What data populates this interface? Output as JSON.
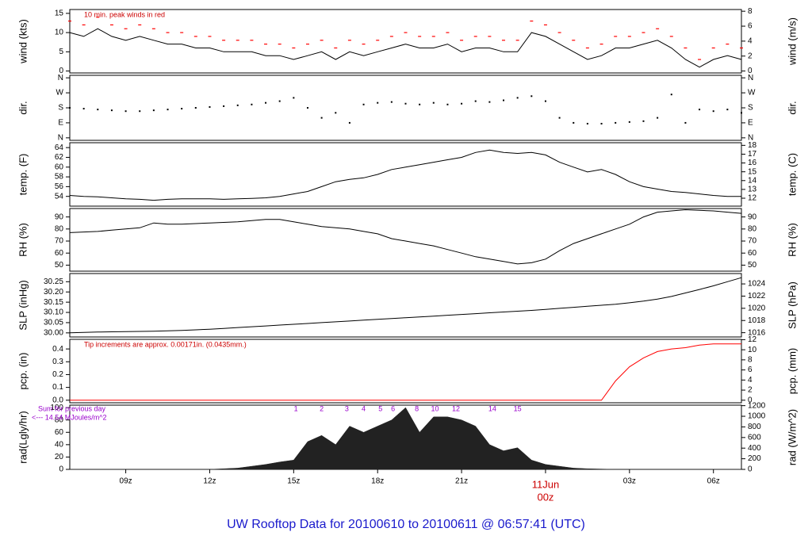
{
  "title": "UW Rooftop Data for 20100610  to  20100611 @ 06:57:41  (UTC)",
  "title_color": "#1a1acc",
  "chart_data": [
    {
      "type": "line",
      "ylabel": "wind (kts)",
      "y2label": "wind (m/s)",
      "note": "10 min. peak winds in red",
      "note_color": "#cc0000",
      "x": [
        7,
        7.5,
        8,
        8.5,
        9,
        9.5,
        10,
        10.5,
        11,
        11.5,
        12,
        12.5,
        13,
        13.5,
        14,
        14.5,
        15,
        15.5,
        16,
        16.5,
        17,
        17.5,
        18,
        18.5,
        19,
        19.5,
        20,
        20.5,
        21,
        21.5,
        22,
        22.5,
        23,
        23.5,
        24,
        24.5,
        25,
        25.5,
        26,
        26.5,
        27,
        27.5,
        28,
        28.5,
        29,
        29.5,
        30,
        30.5,
        31
      ],
      "series": [
        {
          "color": "#000000",
          "style": "line",
          "values": [
            10,
            9,
            11,
            9,
            8,
            9,
            8,
            7,
            7,
            6,
            6,
            5,
            5,
            5,
            4,
            4,
            3,
            4,
            5,
            3,
            5,
            4,
            5,
            6,
            7,
            6,
            6,
            7,
            5,
            6,
            6,
            5,
            5,
            10,
            9,
            7,
            5,
            3,
            4,
            6,
            6,
            7,
            8,
            6,
            3,
            1,
            3,
            4,
            3
          ]
        },
        {
          "color": "#ff0000",
          "style": "dash",
          "values": [
            13,
            12,
            14,
            12,
            11,
            12,
            11,
            10,
            10,
            9,
            9,
            8,
            8,
            8,
            7,
            7,
            6,
            7,
            8,
            6,
            8,
            7,
            8,
            9,
            10,
            9,
            9,
            10,
            8,
            9,
            9,
            8,
            8,
            13,
            12,
            10,
            8,
            6,
            7,
            9,
            9,
            10,
            11,
            9,
            6,
            3,
            6,
            7,
            6
          ]
        }
      ],
      "xlim": [
        7,
        31
      ],
      "ylim": [
        -0.5,
        16
      ],
      "yticks": [
        0,
        5,
        10,
        15
      ],
      "y2lim": [
        -0.257,
        8.23
      ],
      "y2ticks": [
        0,
        2,
        4,
        6,
        8
      ]
    },
    {
      "type": "scatter",
      "ylabel": "dir.",
      "y2label": "dir.",
      "x": [
        7,
        7.5,
        8,
        8.5,
        9,
        9.5,
        10,
        10.5,
        11,
        11.5,
        12,
        12.5,
        13,
        13.5,
        14,
        14.5,
        15,
        15.5,
        16,
        16.5,
        17,
        17.5,
        18,
        18.5,
        19,
        19.5,
        20,
        20.5,
        21,
        21.5,
        22,
        22.5,
        23,
        23.5,
        24,
        24.5,
        25,
        25.5,
        26,
        26.5,
        27,
        27.5,
        28,
        28.5,
        29,
        29.5,
        30,
        30.5,
        31
      ],
      "series": [
        {
          "color": "#000000",
          "style": "dot",
          "values": [
            180,
            175,
            170,
            165,
            160,
            160,
            165,
            170,
            175,
            180,
            185,
            190,
            195,
            200,
            210,
            220,
            240,
            180,
            120,
            150,
            90,
            200,
            210,
            215,
            205,
            200,
            210,
            200,
            205,
            220,
            215,
            225,
            240,
            250,
            220,
            120,
            90,
            85,
            85,
            90,
            95,
            100,
            120,
            260,
            90,
            170,
            160,
            170,
            150
          ]
        }
      ],
      "xlim": [
        7,
        31
      ],
      "ylim": [
        -15,
        375
      ],
      "yticks": [
        {
          "value": 0,
          "label": "N"
        },
        {
          "value": 90,
          "label": "E"
        },
        {
          "value": 180,
          "label": "S"
        },
        {
          "value": 270,
          "label": "W"
        },
        {
          "value": 360,
          "label": "N"
        }
      ],
      "y2lim": [
        -15,
        375
      ],
      "y2ticks": [
        {
          "value": 0,
          "label": "N"
        },
        {
          "value": 90,
          "label": "E"
        },
        {
          "value": 180,
          "label": "S"
        },
        {
          "value": 270,
          "label": "W"
        },
        {
          "value": 360,
          "label": "N"
        }
      ]
    },
    {
      "type": "line",
      "ylabel": "temp. (F)",
      "y2label": "temp. (C)",
      "x": [
        7,
        7.5,
        8,
        8.5,
        9,
        9.5,
        10,
        10.5,
        11,
        11.5,
        12,
        12.5,
        13,
        13.5,
        14,
        14.5,
        15,
        15.5,
        16,
        16.5,
        17,
        17.5,
        18,
        18.5,
        19,
        19.5,
        20,
        20.5,
        21,
        21.5,
        22,
        22.5,
        23,
        23.5,
        24,
        24.5,
        25,
        25.5,
        26,
        26.5,
        27,
        27.5,
        28,
        28.5,
        29,
        29.5,
        30,
        30.5,
        31
      ],
      "series": [
        {
          "color": "#000000",
          "style": "line",
          "values": [
            54.2,
            54,
            53.9,
            53.7,
            53.5,
            53.4,
            53.2,
            53.4,
            53.5,
            53.5,
            53.5,
            53.4,
            53.5,
            53.6,
            53.7,
            54,
            54.5,
            55,
            56,
            57,
            57.5,
            57.8,
            58.5,
            59.5,
            60,
            60.5,
            61,
            61.5,
            62,
            63,
            63.5,
            63,
            62.8,
            63,
            62.5,
            61,
            60,
            59,
            59.5,
            58.5,
            57,
            56,
            55.5,
            55,
            54.8,
            54.5,
            54.2,
            54,
            54
          ]
        }
      ],
      "xlim": [
        7,
        31
      ],
      "ylim": [
        52,
        65
      ],
      "yticks": [
        54,
        56,
        58,
        60,
        62,
        64
      ],
      "y2lim": [
        11.1,
        18.3
      ],
      "y2ticks": [
        12,
        13,
        14,
        15,
        16,
        17,
        18
      ]
    },
    {
      "type": "line",
      "ylabel": "RH (%)",
      "y2label": "RH (%)",
      "x": [
        7,
        7.5,
        8,
        8.5,
        9,
        9.5,
        10,
        10.5,
        11,
        11.5,
        12,
        12.5,
        13,
        13.5,
        14,
        14.5,
        15,
        15.5,
        16,
        16.5,
        17,
        17.5,
        18,
        18.5,
        19,
        19.5,
        20,
        20.5,
        21,
        21.5,
        22,
        22.5,
        23,
        23.5,
        24,
        24.5,
        25,
        25.5,
        26,
        26.5,
        27,
        27.5,
        28,
        28.5,
        29,
        29.5,
        30,
        30.5,
        31
      ],
      "series": [
        {
          "color": "#000000",
          "style": "line",
          "values": [
            77,
            77.5,
            78,
            79,
            80,
            81,
            85,
            84,
            84,
            84.5,
            85,
            85.5,
            86,
            87,
            88,
            88,
            86,
            84,
            82,
            81,
            80,
            78,
            76,
            72,
            70,
            68,
            66,
            63,
            60,
            57,
            55,
            53,
            51,
            52,
            55,
            62,
            68,
            72,
            76,
            80,
            84,
            90,
            94,
            95,
            96,
            95.5,
            95,
            94,
            93
          ]
        }
      ],
      "xlim": [
        7,
        31
      ],
      "ylim": [
        45,
        97
      ],
      "yticks": [
        50,
        60,
        70,
        80,
        90
      ],
      "y2lim": [
        45,
        97
      ],
      "y2ticks": [
        50,
        60,
        70,
        80,
        90
      ]
    },
    {
      "type": "line",
      "ylabel": "SLP (inHg)",
      "y2label": "SLP (hPa)",
      "x": [
        7,
        7.5,
        8,
        8.5,
        9,
        9.5,
        10,
        10.5,
        11,
        11.5,
        12,
        12.5,
        13,
        13.5,
        14,
        14.5,
        15,
        15.5,
        16,
        16.5,
        17,
        17.5,
        18,
        18.5,
        19,
        19.5,
        20,
        20.5,
        21,
        21.5,
        22,
        22.5,
        23,
        23.5,
        24,
        24.5,
        25,
        25.5,
        26,
        26.5,
        27,
        27.5,
        28,
        28.5,
        29,
        29.5,
        30,
        30.5,
        31
      ],
      "series": [
        {
          "color": "#000000",
          "style": "line",
          "values": [
            30.0,
            30.002,
            30.004,
            30.005,
            30.006,
            30.007,
            30.008,
            30.01,
            30.012,
            30.015,
            30.018,
            30.022,
            30.026,
            30.03,
            30.034,
            30.038,
            30.042,
            30.046,
            30.05,
            30.054,
            30.058,
            30.062,
            30.066,
            30.07,
            30.074,
            30.078,
            30.082,
            30.086,
            30.09,
            30.094,
            30.098,
            30.102,
            30.106,
            30.11,
            30.115,
            30.12,
            30.125,
            30.13,
            30.135,
            30.14,
            30.147,
            30.155,
            30.165,
            30.178,
            30.195,
            30.212,
            30.23,
            30.25,
            30.27
          ]
        }
      ],
      "xlim": [
        7,
        31
      ],
      "ylim": [
        29.98,
        30.29
      ],
      "yticks": [
        {
          "value": 30.0,
          "label": "30.00"
        },
        30.05,
        {
          "value": 30.1,
          "label": "30.10"
        },
        30.15,
        {
          "value": 30.2,
          "label": "30.20"
        },
        30.25
      ],
      "y2lim": [
        1015.3,
        1025.7
      ],
      "y2ticks": [
        1016,
        1018,
        1020,
        1022,
        1024
      ]
    },
    {
      "type": "line",
      "ylabel": "pcp. (in)",
      "y2label": "pcp. (mm)",
      "note": "Tip increments are approx. 0.00171in. (0.0435mm.)",
      "note_color": "#cc0000",
      "x": [
        7,
        7.5,
        8,
        8.5,
        9,
        9.5,
        10,
        10.5,
        11,
        11.5,
        12,
        12.5,
        13,
        13.5,
        14,
        14.5,
        15,
        15.5,
        16,
        16.5,
        17,
        17.5,
        18,
        18.5,
        19,
        19.5,
        20,
        20.5,
        21,
        21.5,
        22,
        22.5,
        23,
        23.5,
        24,
        24.5,
        25,
        25.5,
        26,
        26.5,
        27,
        27.5,
        28,
        28.5,
        29,
        29.5,
        30,
        30.5,
        31
      ],
      "series": [
        {
          "color": "#ff0000",
          "style": "line",
          "values": [
            0,
            0,
            0,
            0,
            0,
            0,
            0,
            0,
            0,
            0,
            0,
            0,
            0,
            0,
            0,
            0,
            0,
            0,
            0,
            0,
            0,
            0,
            0,
            0,
            0,
            0,
            0,
            0,
            0,
            0,
            0,
            0,
            0,
            0,
            0,
            0,
            0,
            0,
            0,
            0.15,
            0.26,
            0.33,
            0.38,
            0.4,
            0.41,
            0.43,
            0.44,
            0.44,
            0.44
          ]
        }
      ],
      "xlim": [
        7,
        31
      ],
      "ylim": [
        -0.02,
        0.475
      ],
      "yticks": [
        {
          "value": 0,
          "label": "0.0"
        },
        0.1,
        0.2,
        0.3,
        0.4
      ],
      "y2lim": [
        -0.508,
        12.065
      ],
      "y2ticks": [
        0,
        2,
        4,
        6,
        8,
        10,
        12
      ]
    },
    {
      "type": "area",
      "ylabel": "rad(Lgly/hr)",
      "y2label": "rad (W/m^2)",
      "side_notes": [
        "Sum for previous day",
        "<--- 14.54 MJoules/m^2"
      ],
      "note_color": "#9900cc",
      "hour_labels": [
        {
          "text": "1",
          "x": 15.08
        },
        {
          "text": "2",
          "x": 16.0
        },
        {
          "text": "3",
          "x": 16.9
        },
        {
          "text": "4",
          "x": 17.5
        },
        {
          "text": "5",
          "x": 18.1
        },
        {
          "text": "6",
          "x": 18.55
        },
        {
          "text": "8",
          "x": 19.4
        },
        {
          "text": "10",
          "x": 20.05
        },
        {
          "text": "12",
          "x": 20.8
        },
        {
          "text": "14",
          "x": 22.1
        },
        {
          "text": "15",
          "x": 23.0
        }
      ],
      "x": [
        7,
        7.5,
        8,
        8.5,
        9,
        9.5,
        10,
        10.5,
        11,
        11.5,
        12,
        12.5,
        13,
        13.5,
        14,
        14.5,
        15,
        15.5,
        16,
        16.5,
        17,
        17.5,
        18,
        18.5,
        19,
        19.5,
        20,
        20.5,
        21,
        21.5,
        22,
        22.5,
        23,
        23.5,
        24,
        24.5,
        25,
        25.5,
        26,
        26.5,
        27,
        27.5,
        28,
        28.5,
        29,
        29.5,
        30,
        30.5,
        31
      ],
      "series": [
        {
          "color": "#222222",
          "style": "area",
          "values": [
            0,
            0,
            0,
            0,
            0,
            0,
            0,
            0,
            0,
            0,
            0,
            1,
            2,
            5,
            8,
            12,
            15,
            45,
            55,
            40,
            70,
            60,
            70,
            80,
            100,
            60,
            85,
            85,
            80,
            70,
            40,
            30,
            35,
            15,
            8,
            5,
            2,
            1,
            0.5,
            0,
            0,
            0,
            0,
            0,
            0,
            0,
            0,
            0,
            0
          ]
        }
      ],
      "xlim": [
        7,
        31
      ],
      "ylim": [
        0,
        104
      ],
      "yticks": [
        0,
        20,
        40,
        60,
        80,
        100
      ],
      "y2lim": [
        0,
        1209.5
      ],
      "y2ticks": [
        0,
        200,
        400,
        600,
        800,
        1000,
        1200
      ],
      "xticks": [
        {
          "value": 9,
          "label": "09z"
        },
        {
          "value": 12,
          "label": "12z"
        },
        {
          "value": 15,
          "label": "15z"
        },
        {
          "value": 18,
          "label": "18z"
        },
        {
          "value": 21,
          "label": "21z"
        },
        {
          "value": 24,
          "label": "00z",
          "color": "#cc0000"
        },
        {
          "value": 27,
          "label": "03z"
        },
        {
          "value": 30,
          "label": "06z"
        }
      ],
      "xtick_note": {
        "text": "11Jun",
        "x": 24,
        "color": "#cc0000"
      }
    }
  ]
}
